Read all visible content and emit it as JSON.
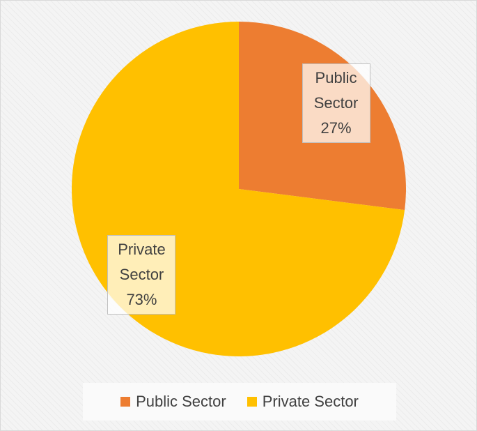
{
  "chart_data": {
    "type": "pie",
    "categories": [
      "Public Sector",
      "Private Sector"
    ],
    "values": [
      27,
      73
    ],
    "value_labels": [
      "27%",
      "73%"
    ],
    "colors": [
      "#ED7D31",
      "#FFC000"
    ],
    "legend": "bottom"
  }
}
